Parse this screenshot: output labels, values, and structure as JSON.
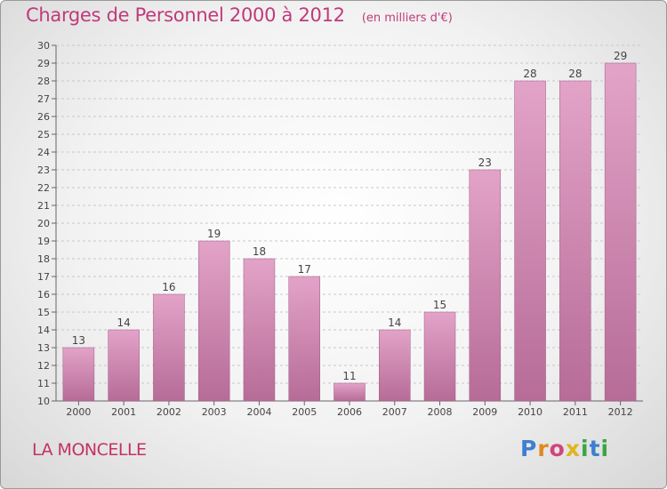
{
  "header": {
    "title": "Charges de Personnel 2000 à 2012",
    "subtitle": "(en milliers d'€)"
  },
  "footer": {
    "commune": "LA MONCELLE",
    "logo_text": "Proxiti"
  },
  "colors": {
    "bar_top": "#e3a3c8",
    "bar_bottom": "#b66c97",
    "title": "#c03a7a",
    "commune": "#c2335f"
  },
  "chart_data": {
    "type": "bar",
    "title": "Charges de Personnel 2000 à 2012",
    "subtitle": "(en milliers d'€)",
    "xlabel": "",
    "ylabel": "",
    "categories": [
      "2000",
      "2001",
      "2002",
      "2003",
      "2004",
      "2005",
      "2006",
      "2007",
      "2008",
      "2009",
      "2010",
      "2011",
      "2012"
    ],
    "values": [
      13,
      14,
      16,
      19,
      18,
      17,
      11,
      14,
      15,
      23,
      28,
      28,
      29
    ],
    "ylim": [
      10,
      30
    ],
    "yticks": [
      10,
      11,
      12,
      13,
      14,
      15,
      16,
      17,
      18,
      19,
      20,
      21,
      22,
      23,
      24,
      25,
      26,
      27,
      28,
      29,
      30
    ],
    "grid": true,
    "data_labels": true
  }
}
